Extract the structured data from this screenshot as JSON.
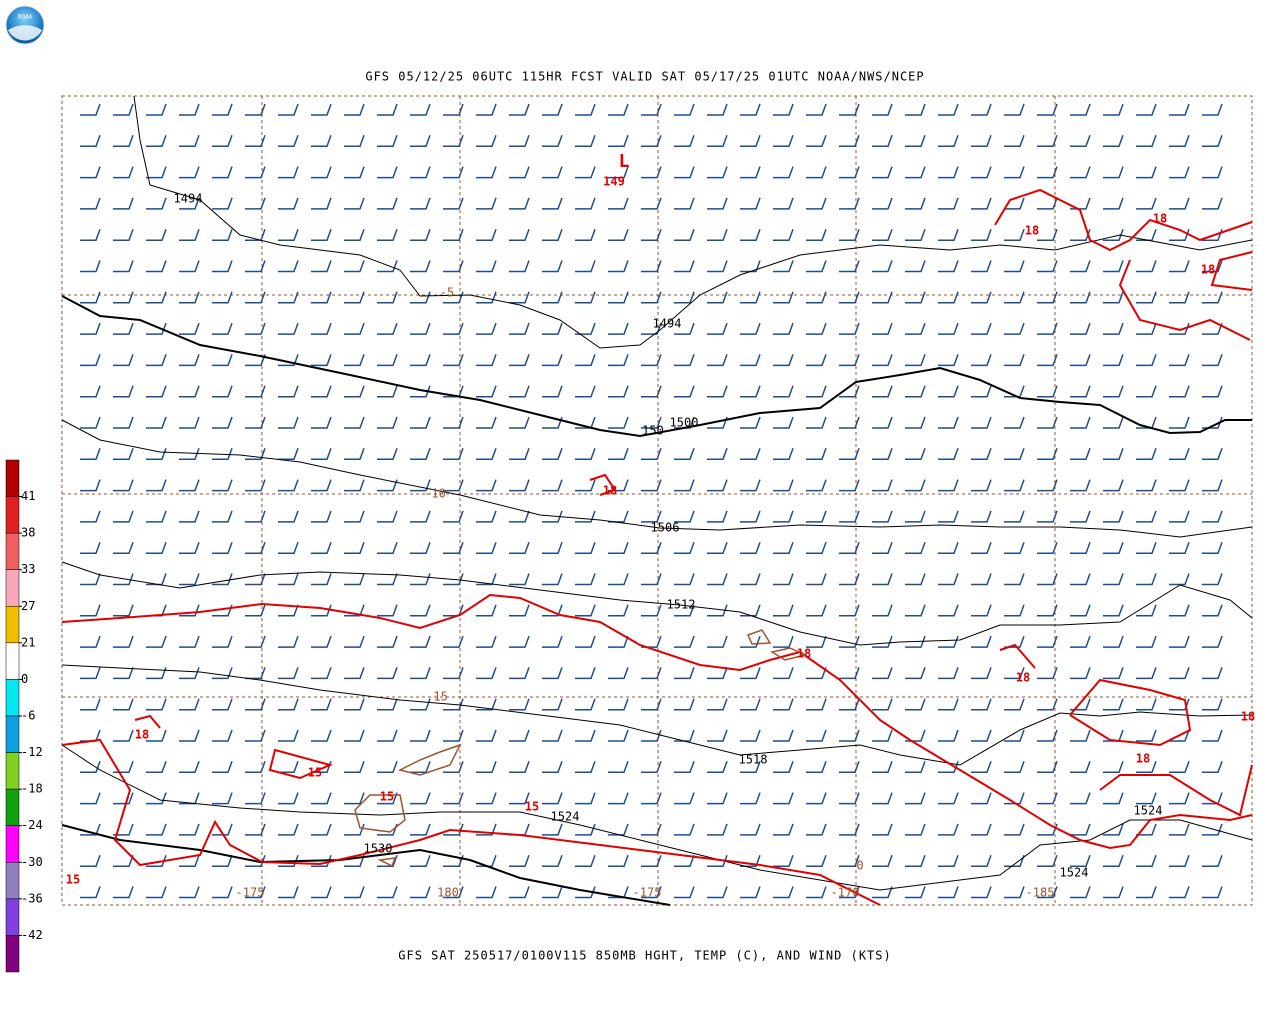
{
  "logo": "NOAA",
  "title": "GFS 05/12/25 06UTC 115HR FCST VALID SAT 05/17/25 01UTC NOAA/NWS/NCEP",
  "caption": "GFS SAT 250517/0100V115 850MB HGHT, TEMP (C), AND WIND (KTS)",
  "low_center": {
    "symbol": "L",
    "value": "149"
  },
  "height_labels": [
    "1494",
    "1494",
    "1500",
    "150",
    "1506",
    "1512",
    "1518",
    "1524",
    "1524",
    "1524",
    "1530"
  ],
  "temperature_labels": [
    "18",
    "18",
    "18",
    "18",
    "18",
    "18",
    "18",
    "18",
    "18",
    "15",
    "15",
    "15",
    "15"
  ],
  "grid_labels": [
    "-5",
    "-10",
    "-15",
    "0",
    "-175",
    "180",
    "-175",
    "-170",
    "-185"
  ],
  "colorbar": {
    "ticks": [
      41,
      38,
      33,
      27,
      21,
      0,
      -6,
      -12,
      -18,
      -24,
      -30,
      -36,
      -42
    ],
    "colors": [
      "#b00000",
      "#e02020",
      "#f06060",
      "#f8a8b8",
      "#f0c000",
      "#ffffff",
      "#00e8f0",
      "#10a0e0",
      "#80d020",
      "#10a010",
      "#ff00ff",
      "#9080c0",
      "#8040e0",
      "#800080"
    ]
  }
}
